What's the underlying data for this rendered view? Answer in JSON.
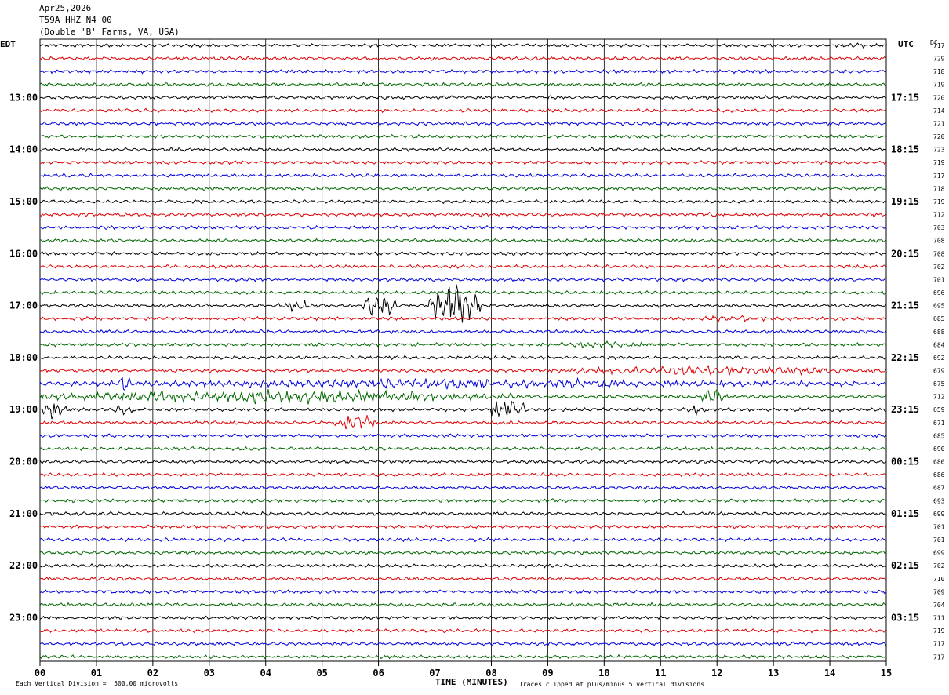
{
  "header": {
    "date": "Apr25,2026",
    "station": "T59A HHZ N4 00",
    "location": "(Double 'B' Farms, VA, USA)"
  },
  "left_timezone": "EDT",
  "right_timezone": "UTC",
  "dc_label": "DC",
  "footer": {
    "scale_note": "Each Vertical Division =  500.00 microvolts",
    "xlabel": "TIME (MINUTES)",
    "clip_note": "Traces clipped at plus/minus 5 vertical divisions"
  },
  "colors": {
    "trace_cycle": [
      "#000000",
      "#dd0000",
      "#0000dd",
      "#006600"
    ]
  },
  "chart_data": {
    "type": "line",
    "title": "Apr25,2026 T59A HHZ N4 00 (Double 'B' Farms, VA, USA)",
    "xlabel": "TIME (MINUTES)",
    "x_ticks": [
      "00",
      "01",
      "02",
      "03",
      "04",
      "05",
      "06",
      "07",
      "08",
      "09",
      "10",
      "11",
      "12",
      "13",
      "14",
      "15"
    ],
    "xlim": [
      0,
      15
    ],
    "grid": true,
    "rows_per_hour": 4,
    "left_hour_labels": [
      "13:00",
      "14:00",
      "15:00",
      "16:00",
      "17:00",
      "18:00",
      "19:00",
      "20:00",
      "21:00",
      "22:00",
      "23:00"
    ],
    "right_hour_labels": [
      "17:15",
      "18:15",
      "19:15",
      "20:15",
      "21:15",
      "22:15",
      "23:15",
      "00:15",
      "01:15",
      "02:15",
      "03:15"
    ],
    "dc_offsets": [
      717,
      729,
      718,
      719,
      720,
      714,
      721,
      720,
      723,
      719,
      717,
      718,
      719,
      712,
      703,
      708,
      708,
      702,
      701,
      696,
      695,
      685,
      688,
      684,
      692,
      679,
      675,
      712,
      659,
      671,
      685,
      690,
      686,
      686,
      687,
      693,
      699,
      701,
      701,
      699,
      702,
      710,
      709,
      704,
      711,
      719,
      717,
      717
    ],
    "bursts": [
      {
        "row": 0,
        "start_min": 14.1,
        "end_min": 14.8,
        "amp": 3
      },
      {
        "row": 13,
        "start_min": 11.8,
        "end_min": 12.1,
        "amp": 3
      },
      {
        "row": 13,
        "start_min": 14.6,
        "end_min": 15.0,
        "amp": 3
      },
      {
        "row": 20,
        "start_min": 4.2,
        "end_min": 4.9,
        "amp": 6
      },
      {
        "row": 20,
        "start_min": 5.7,
        "end_min": 6.3,
        "amp": 14
      },
      {
        "row": 20,
        "start_min": 6.9,
        "end_min": 7.8,
        "amp": 22
      },
      {
        "row": 21,
        "start_min": 11.5,
        "end_min": 13.0,
        "amp": 4
      },
      {
        "row": 23,
        "start_min": 9.0,
        "end_min": 11.0,
        "amp": 4
      },
      {
        "row": 25,
        "start_min": 8.8,
        "end_min": 15.0,
        "amp": 5
      },
      {
        "row": 26,
        "start_min": 0.0,
        "end_min": 15.0,
        "amp": 5
      },
      {
        "row": 26,
        "start_min": 1.4,
        "end_min": 1.6,
        "amp": 12
      },
      {
        "row": 27,
        "start_min": 0.0,
        "end_min": 8.5,
        "amp": 7
      },
      {
        "row": 27,
        "start_min": 11.7,
        "end_min": 12.2,
        "amp": 8
      },
      {
        "row": 28,
        "start_min": 0.0,
        "end_min": 0.5,
        "amp": 9
      },
      {
        "row": 28,
        "start_min": 1.3,
        "end_min": 1.7,
        "amp": 6
      },
      {
        "row": 28,
        "start_min": 8.0,
        "end_min": 8.6,
        "amp": 16
      },
      {
        "row": 28,
        "start_min": 11.4,
        "end_min": 11.8,
        "amp": 7
      },
      {
        "row": 29,
        "start_min": 5.2,
        "end_min": 6.0,
        "amp": 9
      }
    ]
  }
}
